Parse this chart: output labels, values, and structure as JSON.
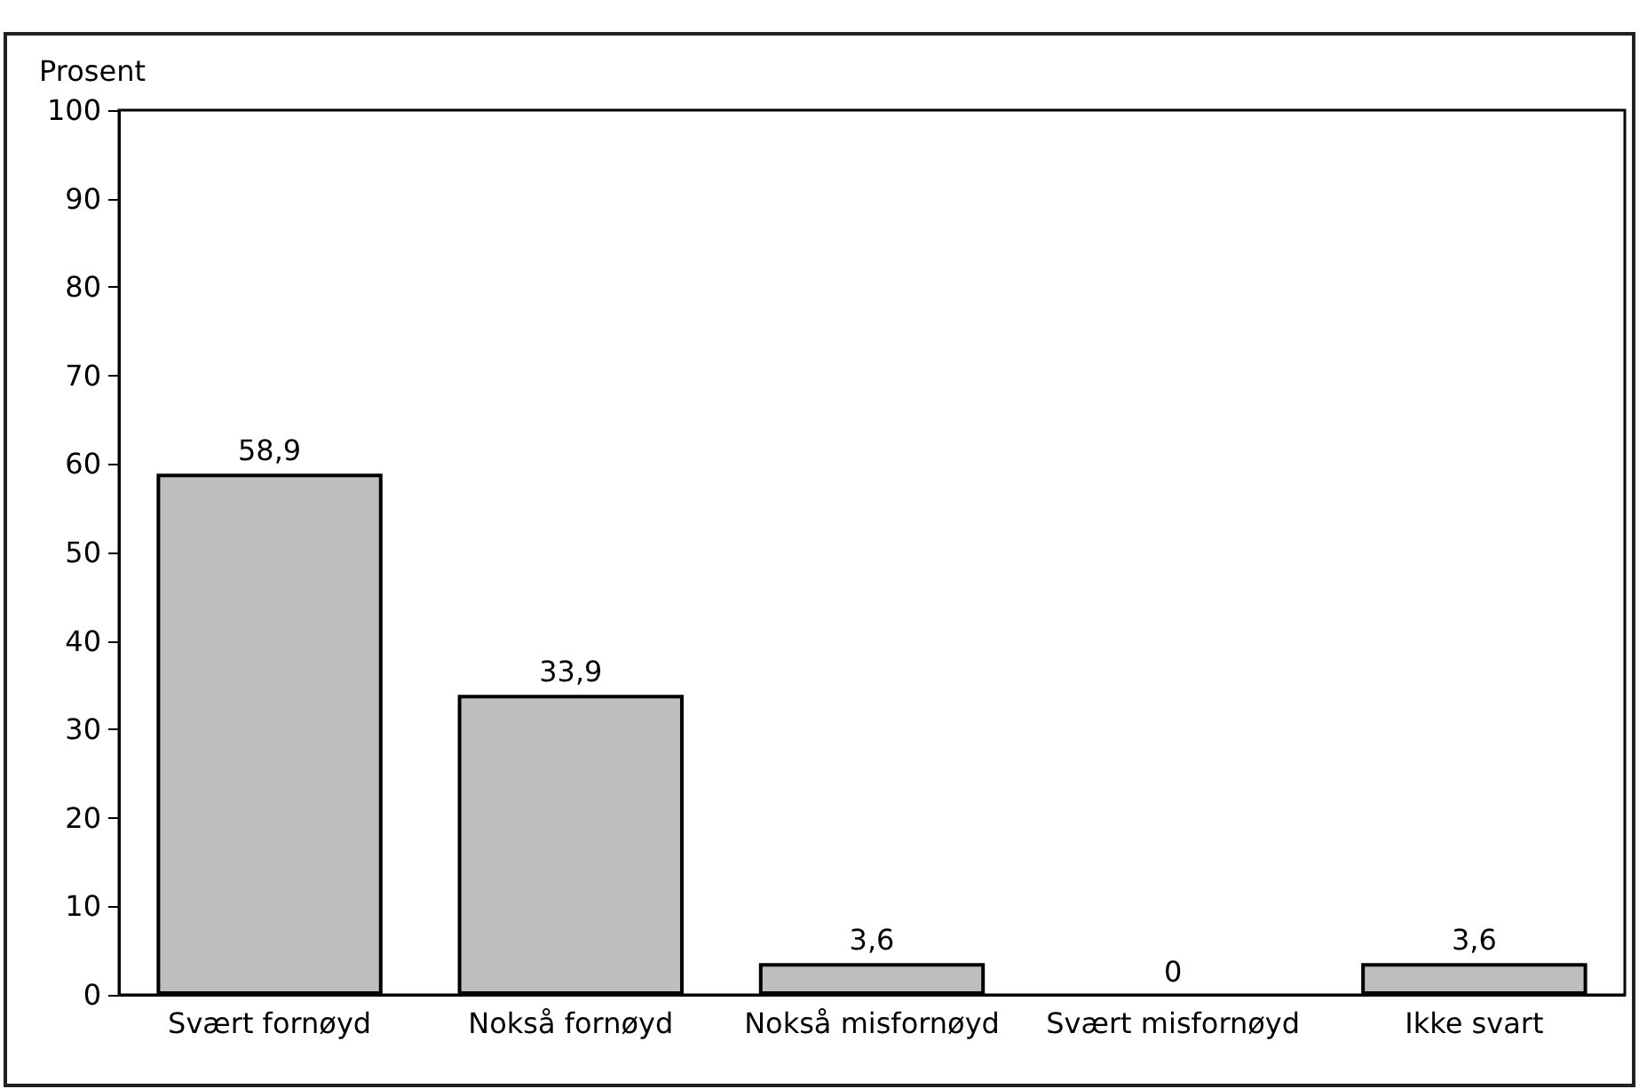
{
  "chart_data": {
    "type": "bar",
    "ylabel": "Prosent",
    "categories": [
      "Svært fornøyd",
      "Nokså fornøyd",
      "Nokså misfornøyd",
      "Svært misfornøyd",
      "Ikke svart"
    ],
    "values": [
      58.9,
      33.9,
      3.6,
      0,
      3.6
    ],
    "color": "#bebebe",
    "value_labels": [
      "58,9",
      "33,9",
      "3,6",
      "0",
      "3,6"
    ],
    "ylim": [
      0,
      100
    ],
    "yticks": [
      0,
      10,
      20,
      30,
      40,
      50,
      60,
      70,
      80,
      90,
      100
    ],
    "grid": false
  }
}
